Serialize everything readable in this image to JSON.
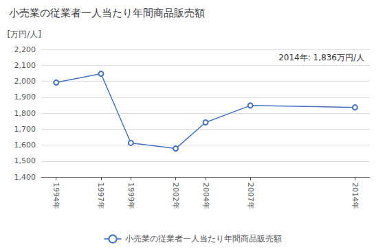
{
  "chart_data": {
    "type": "line",
    "title": "小売業の従業者一人当たり年間商品販売額",
    "ylabel": "[万円/人]",
    "annotation": "2014年: 1,836万円/人",
    "series": [
      {
        "name": "小売業の従業者一人当たり年間商品販売額",
        "color": "#4472C4",
        "marker": "circle",
        "values": [
          1992,
          2047,
          1613,
          1578,
          1742,
          1848,
          1836
        ]
      }
    ],
    "x": [
      1994,
      1997,
      1999,
      2002,
      2004,
      2007,
      2014
    ],
    "xlim": [
      1993,
      2015
    ],
    "xticks": [
      {
        "value": 1994,
        "label": "1994年"
      },
      {
        "value": 1997,
        "label": "1997年"
      },
      {
        "value": 1999,
        "label": "1999年"
      },
      {
        "value": 2002,
        "label": "2002年"
      },
      {
        "value": 2004,
        "label": "2004年"
      },
      {
        "value": 2007,
        "label": "2007年"
      },
      {
        "value": 2014,
        "label": "2014年"
      }
    ],
    "ylim": [
      1400,
      2200
    ],
    "yticks": [
      {
        "value": 1400,
        "label": "1,400"
      },
      {
        "value": 1500,
        "label": "1,500"
      },
      {
        "value": 1600,
        "label": "1,600"
      },
      {
        "value": 1700,
        "label": "1,700"
      },
      {
        "value": 1800,
        "label": "1,800"
      },
      {
        "value": 1900,
        "label": "1,900"
      },
      {
        "value": 2000,
        "label": "2,000"
      },
      {
        "value": 2100,
        "label": "2,100"
      },
      {
        "value": 2200,
        "label": "2,200"
      }
    ],
    "grid": true,
    "legend": "bottom"
  }
}
